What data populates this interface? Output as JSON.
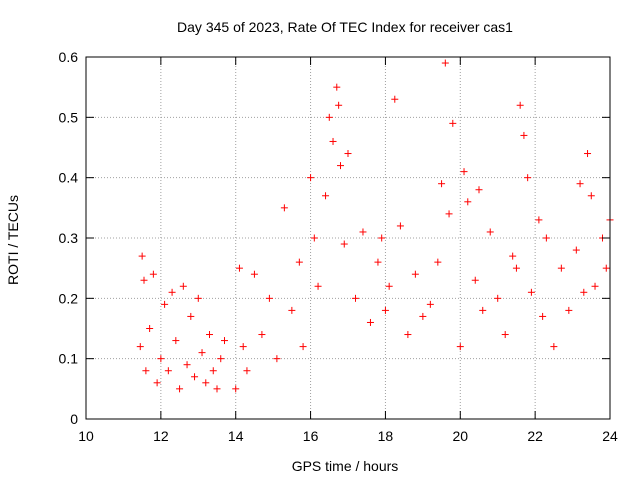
{
  "chart_data": {
    "type": "scatter",
    "title": "Day 345 of 2023, Rate Of TEC Index for receiver cas1",
    "xlabel": "GPS time / hours",
    "ylabel": "ROTI / TECUs",
    "xlim": [
      10,
      24
    ],
    "ylim": [
      0,
      0.6
    ],
    "xticks": [
      10,
      12,
      14,
      16,
      18,
      20,
      22,
      24
    ],
    "yticks": [
      0,
      0.1,
      0.2,
      0.3,
      0.4,
      0.5,
      0.6
    ],
    "grid": true,
    "marker": "plus",
    "marker_color": "#ff0000",
    "series": [
      {
        "x": [
          11.45,
          11.5,
          11.55,
          11.6,
          11.7,
          11.8,
          11.9,
          12.0,
          12.1,
          12.2,
          12.3,
          12.4,
          12.5,
          12.6,
          12.7,
          12.8,
          12.9,
          13.0,
          13.1,
          13.2,
          13.3,
          13.4,
          13.5,
          13.6,
          13.7,
          14.0,
          14.1,
          14.2,
          14.3,
          14.5,
          14.7,
          14.9,
          15.1,
          15.3,
          15.5,
          15.7,
          15.8,
          16.0,
          16.1,
          16.2,
          16.4,
          16.5,
          16.6,
          16.7,
          16.75,
          16.8,
          16.9,
          17.0,
          17.2,
          17.4,
          17.6,
          17.8,
          17.9,
          18.0,
          18.1,
          18.25,
          18.4,
          18.6,
          18.8,
          19.0,
          19.2,
          19.4,
          19.5,
          19.6,
          19.7,
          19.8,
          20.0,
          20.1,
          20.2,
          20.4,
          20.5,
          20.6,
          20.8,
          21.0,
          21.2,
          21.4,
          21.5,
          21.6,
          21.7,
          21.8,
          21.9,
          22.1,
          22.2,
          22.3,
          22.5,
          22.7,
          22.9,
          23.1,
          23.2,
          23.3,
          23.4,
          23.5,
          23.6,
          23.8,
          23.9,
          24.0
        ],
        "y": [
          0.12,
          0.27,
          0.23,
          0.08,
          0.15,
          0.24,
          0.06,
          0.1,
          0.19,
          0.08,
          0.21,
          0.13,
          0.05,
          0.22,
          0.09,
          0.17,
          0.07,
          0.2,
          0.11,
          0.06,
          0.14,
          0.08,
          0.05,
          0.1,
          0.13,
          0.05,
          0.25,
          0.12,
          0.08,
          0.24,
          0.14,
          0.2,
          0.1,
          0.35,
          0.18,
          0.26,
          0.12,
          0.4,
          0.3,
          0.22,
          0.37,
          0.5,
          0.46,
          0.55,
          0.52,
          0.42,
          0.29,
          0.44,
          0.2,
          0.31,
          0.16,
          0.26,
          0.3,
          0.18,
          0.22,
          0.53,
          0.32,
          0.14,
          0.24,
          0.17,
          0.19,
          0.26,
          0.39,
          0.59,
          0.34,
          0.49,
          0.12,
          0.41,
          0.36,
          0.23,
          0.38,
          0.18,
          0.31,
          0.2,
          0.14,
          0.27,
          0.25,
          0.52,
          0.47,
          0.4,
          0.21,
          0.33,
          0.17,
          0.3,
          0.12,
          0.25,
          0.18,
          0.28,
          0.39,
          0.21,
          0.44,
          0.37,
          0.22,
          0.3,
          0.25,
          0.33
        ]
      }
    ]
  }
}
